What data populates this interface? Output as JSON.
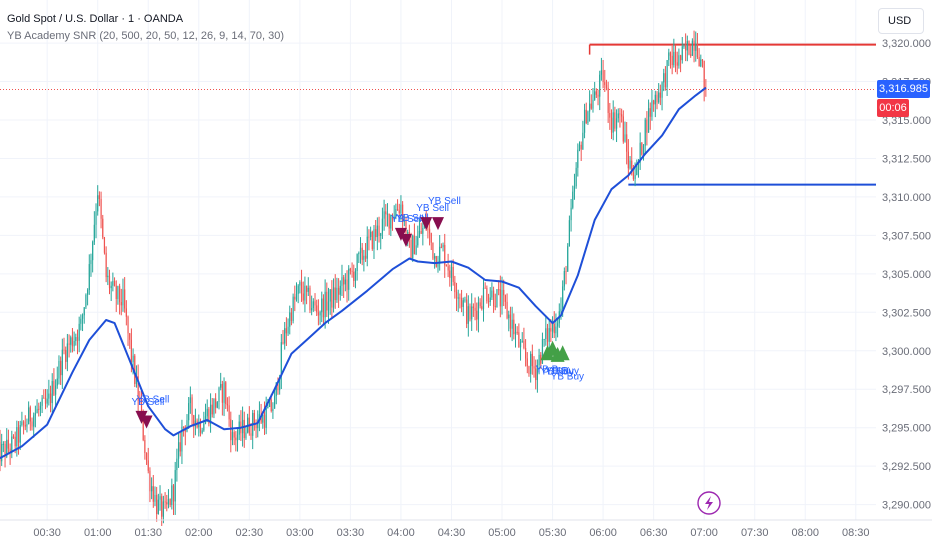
{
  "header": {
    "title": "Gold Spot / U.S. Dollar · 1 · OANDA",
    "indicator": "YB Academy SNR (20, 500, 20, 50, 12, 26, 9, 14, 70, 30)"
  },
  "currency_label": "USD",
  "last_price": {
    "value": 3316.985,
    "label": "3,316.985",
    "countdown": "00:06",
    "color": "#2962ff",
    "countdown_color": "#f23645"
  },
  "colors": {
    "up": "#26a69a",
    "down": "#ef5350",
    "ma": "#1e4fd8",
    "resistance": "#e53935",
    "support": "#1e4fd8",
    "sell": "#880e4f",
    "buy": "#43a047"
  },
  "chart_data": {
    "type": "candlestick",
    "instrument": "Gold Spot / U.S. Dollar",
    "interval": "1",
    "ylim": [
      3289.0,
      3322.8
    ],
    "xlim": [
      "00:02",
      "08:42"
    ],
    "y_ticks": [
      {
        "value": 3290.0,
        "label": "3,290.000"
      },
      {
        "value": 3292.5,
        "label": "3,292.500"
      },
      {
        "value": 3295.0,
        "label": "3,295.000"
      },
      {
        "value": 3297.5,
        "label": "3,297.500"
      },
      {
        "value": 3300.0,
        "label": "3,300.000"
      },
      {
        "value": 3302.5,
        "label": "3,302.500"
      },
      {
        "value": 3305.0,
        "label": "3,305.000"
      },
      {
        "value": 3307.5,
        "label": "3,307.500"
      },
      {
        "value": 3310.0,
        "label": "3,310.000"
      },
      {
        "value": 3312.5,
        "label": "3,312.500"
      },
      {
        "value": 3315.0,
        "label": "3,315.000"
      },
      {
        "value": 3317.5,
        "label": "3,317.500"
      },
      {
        "value": 3320.0,
        "label": "3,320.000"
      }
    ],
    "x_ticks": [
      "00:30",
      "01:00",
      "01:30",
      "02:00",
      "02:30",
      "03:00",
      "03:30",
      "04:00",
      "04:30",
      "05:00",
      "05:30",
      "06:00",
      "06:30",
      "07:00",
      "07:30",
      "08:00",
      "08:30"
    ],
    "price_path": [
      [
        "00:00",
        3293.2
      ],
      [
        "00:10",
        3293.9
      ],
      [
        "00:20",
        3295.8
      ],
      [
        "00:30",
        3296.4
      ],
      [
        "00:40",
        3299.9
      ],
      [
        "00:50",
        3301.6
      ],
      [
        "00:55",
        3305.3
      ],
      [
        "01:00",
        3310.5
      ],
      [
        "01:05",
        3304.8
      ],
      [
        "01:10",
        3303.6
      ],
      [
        "01:15",
        3303.2
      ],
      [
        "01:20",
        3299.6
      ],
      [
        "01:25",
        3296.4
      ],
      [
        "01:30",
        3292.0
      ],
      [
        "01:35",
        3290.0
      ],
      [
        "01:40",
        3289.4
      ],
      [
        "01:45",
        3291.0
      ],
      [
        "01:50",
        3294.8
      ],
      [
        "01:55",
        3296.2
      ],
      [
        "02:00",
        3295.2
      ],
      [
        "02:05",
        3295.9
      ],
      [
        "02:10",
        3296.6
      ],
      [
        "02:15",
        3297.5
      ],
      [
        "02:20",
        3294.3
      ],
      [
        "02:30",
        3295.2
      ],
      [
        "02:40",
        3295.8
      ],
      [
        "02:45",
        3296.6
      ],
      [
        "02:50",
        3300.6
      ],
      [
        "02:55",
        3302.7
      ],
      [
        "03:00",
        3304.0
      ],
      [
        "03:10",
        3302.6
      ],
      [
        "03:20",
        3303.5
      ],
      [
        "03:30",
        3304.8
      ],
      [
        "03:40",
        3306.8
      ],
      [
        "03:50",
        3308.4
      ],
      [
        "04:00",
        3309.5
      ],
      [
        "04:05",
        3306.5
      ],
      [
        "04:10",
        3307.3
      ],
      [
        "04:15",
        3308.2
      ],
      [
        "04:20",
        3306.2
      ],
      [
        "04:25",
        3306.5
      ],
      [
        "04:30",
        3304.9
      ],
      [
        "04:35",
        3303.6
      ],
      [
        "04:40",
        3302.2
      ],
      [
        "04:45",
        3302.8
      ],
      [
        "04:50",
        3303.9
      ],
      [
        "04:55",
        3303.6
      ],
      [
        "05:00",
        3303.2
      ],
      [
        "05:05",
        3302.0
      ],
      [
        "05:10",
        3300.4
      ],
      [
        "05:15",
        3299.2
      ],
      [
        "05:20",
        3298.8
      ],
      [
        "05:25",
        3300.6
      ],
      [
        "05:30",
        3301.6
      ],
      [
        "05:35",
        3302.7
      ],
      [
        "05:40",
        3307.8
      ],
      [
        "05:45",
        3312.5
      ],
      [
        "05:50",
        3315.6
      ],
      [
        "05:55",
        3316.4
      ],
      [
        "06:00",
        3317.8
      ],
      [
        "06:05",
        3314.9
      ],
      [
        "06:10",
        3315.4
      ],
      [
        "06:15",
        3312.2
      ],
      [
        "06:20",
        3311.6
      ],
      [
        "06:25",
        3314.6
      ],
      [
        "06:30",
        3316.3
      ],
      [
        "06:35",
        3317.2
      ],
      [
        "06:40",
        3319.0
      ],
      [
        "06:45",
        3318.8
      ],
      [
        "06:50",
        3319.6
      ],
      [
        "06:55",
        3320.4
      ],
      [
        "07:01",
        3316.985
      ]
    ],
    "moving_average": [
      [
        "00:00",
        3292.9
      ],
      [
        "00:15",
        3293.8
      ],
      [
        "00:30",
        3295.2
      ],
      [
        "00:45",
        3298.6
      ],
      [
        "00:55",
        3300.7
      ],
      [
        "01:05",
        3302.0
      ],
      [
        "01:10",
        3301.8
      ],
      [
        "01:20",
        3299.1
      ],
      [
        "01:30",
        3296.4
      ],
      [
        "01:40",
        3294.9
      ],
      [
        "01:45",
        3294.5
      ],
      [
        "01:55",
        3295.1
      ],
      [
        "02:05",
        3295.5
      ],
      [
        "02:15",
        3294.9
      ],
      [
        "02:25",
        3295.0
      ],
      [
        "02:35",
        3295.3
      ],
      [
        "02:45",
        3297.5
      ],
      [
        "02:55",
        3299.8
      ],
      [
        "03:05",
        3300.8
      ],
      [
        "03:15",
        3301.8
      ],
      [
        "03:25",
        3302.6
      ],
      [
        "03:40",
        3303.9
      ],
      [
        "03:55",
        3305.3
      ],
      [
        "04:05",
        3306.0
      ],
      [
        "04:10",
        3305.8
      ],
      [
        "04:20",
        3305.7
      ],
      [
        "04:30",
        3305.8
      ],
      [
        "04:40",
        3305.4
      ],
      [
        "04:50",
        3304.6
      ],
      [
        "05:00",
        3304.5
      ],
      [
        "05:10",
        3304.1
      ],
      [
        "05:20",
        3302.9
      ],
      [
        "05:30",
        3301.8
      ],
      [
        "05:35",
        3302.3
      ],
      [
        "05:45",
        3304.9
      ],
      [
        "05:55",
        3308.5
      ],
      [
        "06:05",
        3310.5
      ],
      [
        "06:15",
        3311.4
      ],
      [
        "06:25",
        3312.8
      ],
      [
        "06:35",
        3314.0
      ],
      [
        "06:45",
        3315.7
      ],
      [
        "06:55",
        3316.6
      ],
      [
        "07:01",
        3317.1
      ]
    ],
    "levels": [
      {
        "name": "resistance",
        "price": 3319.9,
        "from": "05:52",
        "to": "08:42"
      },
      {
        "name": "support",
        "price": 3310.8,
        "from": "06:15",
        "to": "08:42"
      }
    ],
    "signals": [
      {
        "type": "sell",
        "label": "YB Sell",
        "time": "01:26",
        "price": 3295.7
      },
      {
        "type": "sell",
        "label": "YB Sell",
        "time": "01:29",
        "price": 3295.4
      },
      {
        "type": "sell",
        "label": "YB Sell",
        "time": "04:00",
        "price": 3307.6
      },
      {
        "type": "sell",
        "label": "YB Sell",
        "time": "04:03",
        "price": 3307.2
      },
      {
        "type": "sell",
        "label": "YB Sell",
        "time": "04:15",
        "price": 3308.3
      },
      {
        "type": "sell",
        "label": "YB Sell",
        "time": "04:22",
        "price": 3308.3
      },
      {
        "type": "buy",
        "label": "YB Buy",
        "time": "05:27",
        "price": 3299.9
      },
      {
        "type": "buy",
        "label": "YB Buy",
        "time": "05:30",
        "price": 3300.2
      },
      {
        "type": "buy",
        "label": "YB Buy",
        "time": "05:33",
        "price": 3299.8
      },
      {
        "type": "buy",
        "label": "YB Buy",
        "time": "05:36",
        "price": 3299.9
      }
    ]
  }
}
